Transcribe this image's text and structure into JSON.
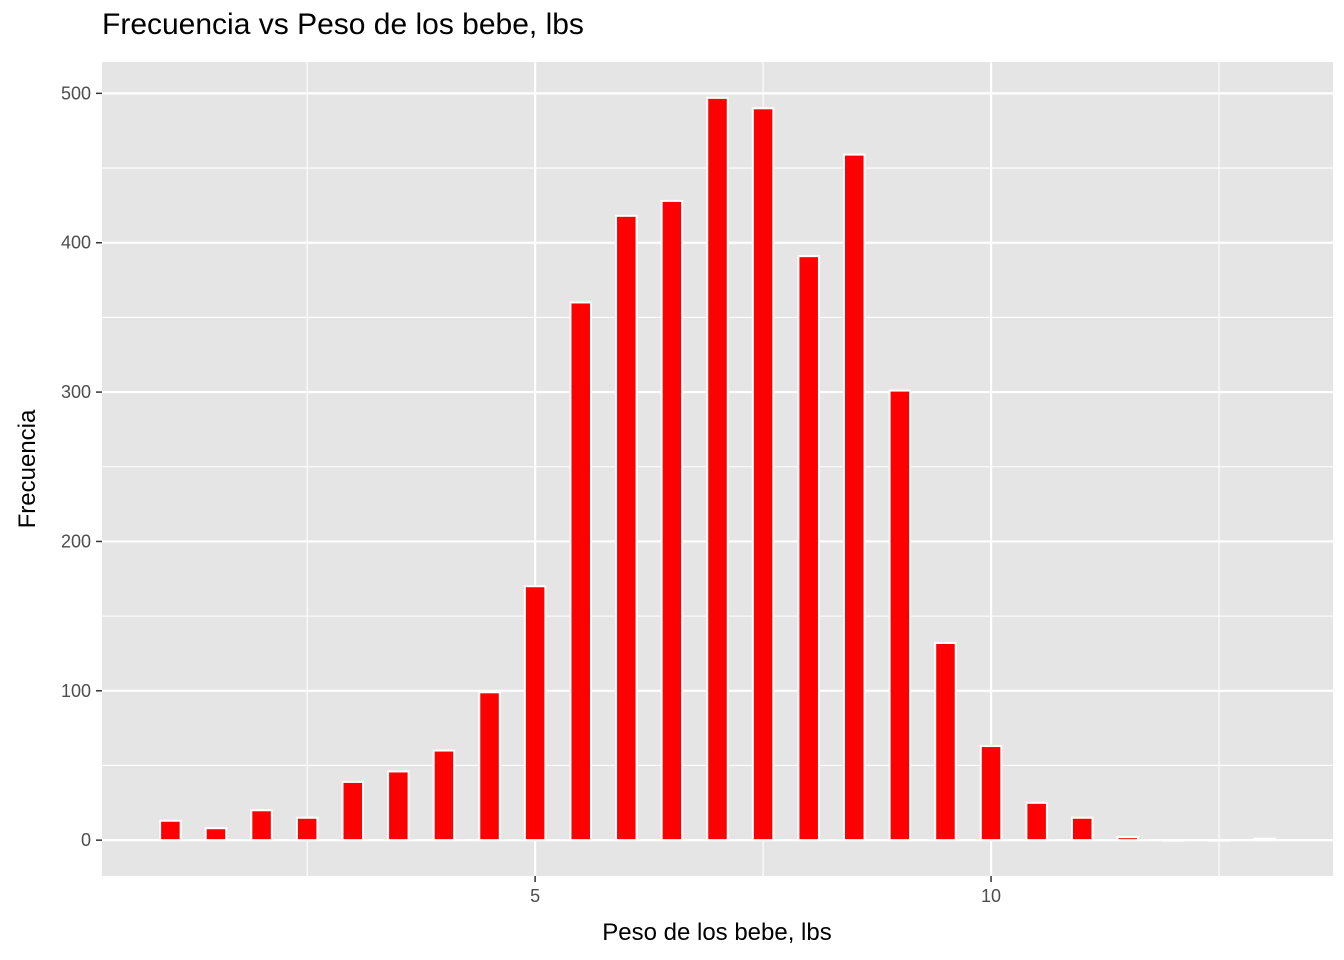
{
  "chart_data": {
    "type": "bar",
    "title": "Frecuencia vs Peso de los bebe, lbs",
    "xlabel": "Peso de los bebe, lbs",
    "ylabel": "Frecuencia",
    "xlim": [
      0.25,
      13.75
    ],
    "ylim": [
      -24,
      521
    ],
    "x_ticks": [
      5,
      10
    ],
    "x_tick_labels": [
      "5",
      "10"
    ],
    "y_ticks": [
      0,
      100,
      200,
      300,
      400,
      500
    ],
    "y_tick_labels": [
      "0",
      "100",
      "200",
      "300",
      "400",
      "500"
    ],
    "bin_width": 0.5,
    "x": [
      1,
      1.5,
      2,
      2.5,
      3,
      3.5,
      4,
      4.5,
      5,
      5.5,
      6,
      6.5,
      7,
      7.5,
      8,
      8.5,
      9,
      9.5,
      10,
      10.5,
      11,
      11.5,
      12,
      12.5,
      13
    ],
    "values": [
      13,
      8,
      20,
      15,
      39,
      46,
      60,
      99,
      170,
      360,
      418,
      428,
      497,
      490,
      391,
      459,
      301,
      132,
      63,
      25,
      15,
      2,
      0,
      0,
      1
    ],
    "bar_color": "#ff0000",
    "bar_outline": "#ffffff",
    "panel_background": "#e5e5e5",
    "grid": true,
    "legend": "none"
  }
}
